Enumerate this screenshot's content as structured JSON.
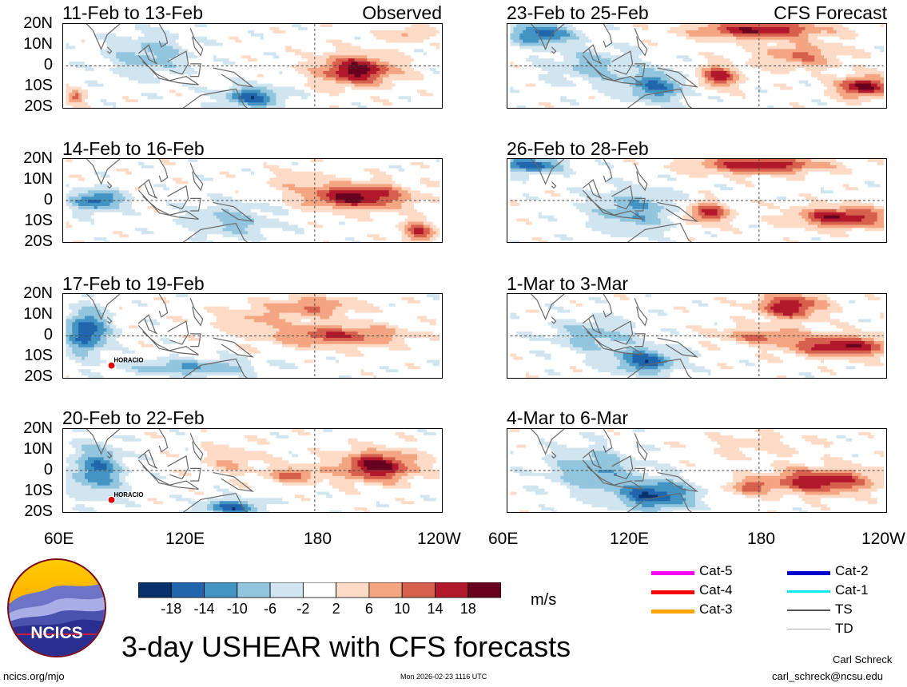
{
  "title": "3-day USHEAR with CFS forecasts",
  "chart_data": {
    "type": "heatmap",
    "title": "3-day USHEAR with CFS forecasts",
    "units": "m/s",
    "lat_ticks": [
      "20N",
      "10N",
      "0",
      "10S",
      "20S"
    ],
    "lon_ticks": [
      "60E",
      "120E",
      "180",
      "120W"
    ],
    "lon_range": [
      60,
      240
    ],
    "lat_range": [
      -20,
      20
    ],
    "colorbar": {
      "labels": [
        "-18",
        "-14",
        "-10",
        "-6",
        "-2",
        "2",
        "6",
        "10",
        "14",
        "18"
      ],
      "colors": [
        "#08306b",
        "#2166ac",
        "#4393c3",
        "#92c5de",
        "#d1e5f0",
        "#ffffff",
        "#fddbc7",
        "#f4a582",
        "#d6604d",
        "#b2182b",
        "#67001f"
      ]
    },
    "panels": [
      {
        "id": "p1",
        "title": "11-Feb to 13-Feb",
        "label": "Observed",
        "blobs": [
          {
            "lon": 200,
            "lat": -2,
            "rx": 18,
            "ry": 7,
            "v": 20
          },
          {
            "lon": 150,
            "lat": -15,
            "rx": 14,
            "ry": 5,
            "v": -16
          },
          {
            "lon": 100,
            "lat": 5,
            "rx": 20,
            "ry": 10,
            "v": -8
          },
          {
            "lon": 65,
            "lat": -15,
            "rx": 4,
            "ry": 3,
            "v": 12
          },
          {
            "lon": 225,
            "lat": 15,
            "rx": 10,
            "ry": 3,
            "v": 8
          }
        ]
      },
      {
        "id": "p2",
        "title": "14-Feb to 16-Feb",
        "label": "",
        "blobs": [
          {
            "lon": 200,
            "lat": 2,
            "rx": 24,
            "ry": 6,
            "v": 20
          },
          {
            "lon": 230,
            "lat": -15,
            "rx": 8,
            "ry": 5,
            "v": 14
          },
          {
            "lon": 75,
            "lat": 0,
            "rx": 12,
            "ry": 5,
            "v": -16
          },
          {
            "lon": 140,
            "lat": -10,
            "rx": 20,
            "ry": 8,
            "v": -8
          },
          {
            "lon": 170,
            "lat": 10,
            "rx": 12,
            "ry": 5,
            "v": 4
          }
        ]
      },
      {
        "id": "p3",
        "title": "17-Feb to 19-Feb",
        "label": "",
        "blobs": [
          {
            "lon": 70,
            "lat": 2,
            "rx": 10,
            "ry": 10,
            "v": -18
          },
          {
            "lon": 190,
            "lat": 0,
            "rx": 30,
            "ry": 5,
            "v": 14
          },
          {
            "lon": 180,
            "lat": 14,
            "rx": 20,
            "ry": 5,
            "v": 10
          },
          {
            "lon": 120,
            "lat": -15,
            "rx": 30,
            "ry": 4,
            "v": -10
          },
          {
            "lon": 150,
            "lat": 8,
            "rx": 20,
            "ry": 6,
            "v": 6
          }
        ]
      },
      {
        "id": "p4",
        "title": "20-Feb to 22-Feb",
        "label": "",
        "blobs": [
          {
            "lon": 210,
            "lat": 2,
            "rx": 18,
            "ry": 7,
            "v": 20
          },
          {
            "lon": 170,
            "lat": -2,
            "rx": 12,
            "ry": 4,
            "v": 12
          },
          {
            "lon": 75,
            "lat": 0,
            "rx": 12,
            "ry": 12,
            "v": -14
          },
          {
            "lon": 140,
            "lat": -18,
            "rx": 14,
            "ry": 4,
            "v": -16
          },
          {
            "lon": 140,
            "lat": 5,
            "rx": 14,
            "ry": 7,
            "v": 6
          }
        ]
      },
      {
        "id": "p5",
        "title": "23-Feb to 25-Feb",
        "label": "CFS Forecast",
        "blobs": [
          {
            "lon": 180,
            "lat": 17,
            "rx": 30,
            "ry": 4,
            "v": 18
          },
          {
            "lon": 230,
            "lat": -10,
            "rx": 12,
            "ry": 5,
            "v": 20
          },
          {
            "lon": 160,
            "lat": -5,
            "rx": 10,
            "ry": 5,
            "v": 16
          },
          {
            "lon": 200,
            "lat": 5,
            "rx": 20,
            "ry": 6,
            "v": 10
          },
          {
            "lon": 75,
            "lat": 15,
            "rx": 15,
            "ry": 5,
            "v": -16
          },
          {
            "lon": 130,
            "lat": -10,
            "rx": 15,
            "ry": 7,
            "v": -14
          },
          {
            "lon": 100,
            "lat": 0,
            "rx": 20,
            "ry": 8,
            "v": -8
          }
        ]
      },
      {
        "id": "p6",
        "title": "26-Feb to 28-Feb",
        "label": "",
        "blobs": [
          {
            "lon": 180,
            "lat": 17,
            "rx": 30,
            "ry": 4,
            "v": 18
          },
          {
            "lon": 220,
            "lat": -8,
            "rx": 22,
            "ry": 5,
            "v": 18
          },
          {
            "lon": 155,
            "lat": -6,
            "rx": 10,
            "ry": 5,
            "v": 16
          },
          {
            "lon": 70,
            "lat": 17,
            "rx": 15,
            "ry": 4,
            "v": -16
          },
          {
            "lon": 120,
            "lat": -5,
            "rx": 20,
            "ry": 10,
            "v": -10
          }
        ]
      },
      {
        "id": "p7",
        "title": "1-Mar to 3-Mar",
        "label": "",
        "blobs": [
          {
            "lon": 195,
            "lat": 14,
            "rx": 15,
            "ry": 6,
            "v": 18
          },
          {
            "lon": 220,
            "lat": -5,
            "rx": 25,
            "ry": 5,
            "v": 18
          },
          {
            "lon": 180,
            "lat": 0,
            "rx": 20,
            "ry": 4,
            "v": 10
          },
          {
            "lon": 125,
            "lat": -12,
            "rx": 15,
            "ry": 6,
            "v": -16
          },
          {
            "lon": 100,
            "lat": 0,
            "rx": 20,
            "ry": 8,
            "v": -8
          }
        ]
      },
      {
        "id": "p8",
        "title": "4-Mar to 6-Mar",
        "label": "",
        "blobs": [
          {
            "lon": 210,
            "lat": -5,
            "rx": 25,
            "ry": 6,
            "v": 18
          },
          {
            "lon": 175,
            "lat": -8,
            "rx": 10,
            "ry": 4,
            "v": 10
          },
          {
            "lon": 130,
            "lat": -12,
            "rx": 18,
            "ry": 7,
            "v": -18
          },
          {
            "lon": 100,
            "lat": 0,
            "rx": 20,
            "ry": 10,
            "v": -10
          },
          {
            "lon": 180,
            "lat": 12,
            "rx": 25,
            "ry": 6,
            "v": 4
          }
        ]
      }
    ],
    "storms": [
      {
        "panel": "p3",
        "name": "HORACIO",
        "lon": 82,
        "lat": -13
      },
      {
        "panel": "p4",
        "name": "HORACIO",
        "lon": 82,
        "lat": -13
      }
    ]
  },
  "legend": [
    {
      "label": "Cat-5",
      "color": "#ff00ff",
      "width": 5
    },
    {
      "label": "Cat-4",
      "color": "#ff0000",
      "width": 5
    },
    {
      "label": "Cat-3",
      "color": "#ffa500",
      "width": 5
    },
    {
      "label": "Cat-2",
      "color": "#0000cc",
      "width": 5
    },
    {
      "label": "Cat-1",
      "color": "#00eeee",
      "width": 3
    },
    {
      "label": "TS",
      "color": "#555555",
      "width": 2
    },
    {
      "label": "TD",
      "color": "#aaaaaa",
      "width": 1
    }
  ],
  "logo_text": "NCICS",
  "footer": {
    "url": "ncics.org/mjo",
    "timestamp": "Mon 2026-02-23 1116 UTC",
    "author": "Carl Schreck",
    "email": "carl_schreck@ncsu.edu"
  }
}
